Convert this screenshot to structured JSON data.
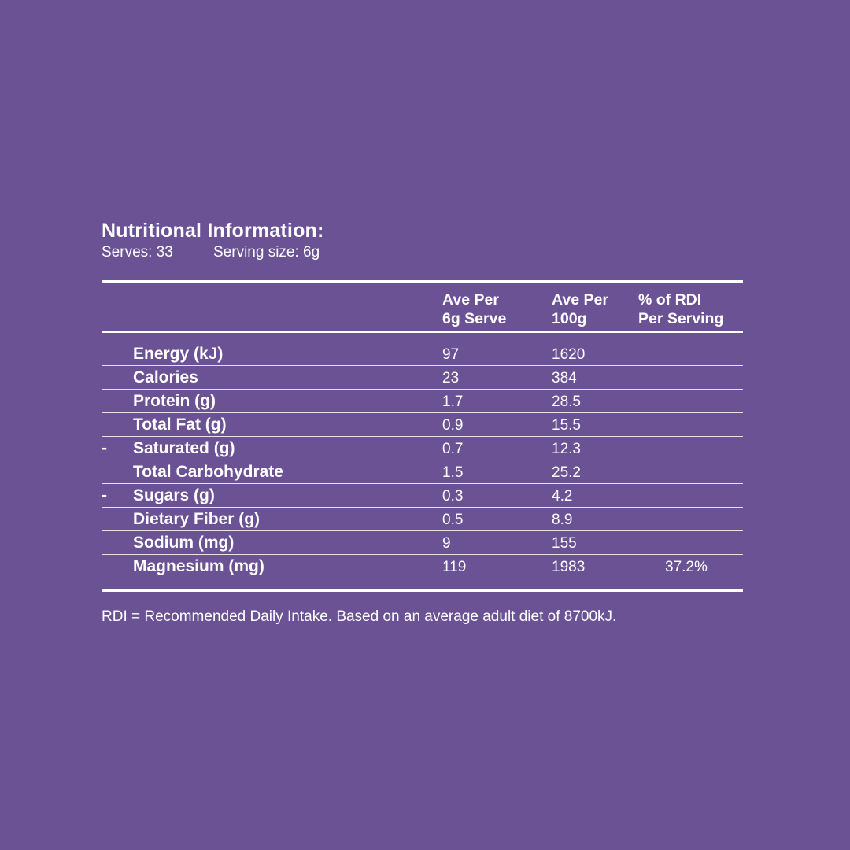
{
  "title": "Nutritional Information:",
  "serves": "Serves: 33",
  "serving_size": "Serving size: 6g",
  "headers": {
    "col1": [
      "Ave Per",
      "6g Serve"
    ],
    "col2": [
      "Ave Per",
      "100g"
    ],
    "col3": [
      "% of RDI",
      "Per Serving"
    ]
  },
  "rows": [
    {
      "dash": "",
      "name": "Energy (kJ)",
      "serve": "97",
      "per100": "1620",
      "rdi": ""
    },
    {
      "dash": "",
      "name": "Calories",
      "serve": "23",
      "per100": "384",
      "rdi": ""
    },
    {
      "dash": "",
      "name": "Protein (g)",
      "serve": "1.7",
      "per100": "28.5",
      "rdi": ""
    },
    {
      "dash": "",
      "name": "Total Fat (g)",
      "serve": "0.9",
      "per100": "15.5",
      "rdi": ""
    },
    {
      "dash": "-",
      "name": "Saturated (g)",
      "serve": "0.7",
      "per100": "12.3",
      "rdi": ""
    },
    {
      "dash": "",
      "name": "Total Carbohydrate",
      "serve": "1.5",
      "per100": "25.2",
      "rdi": ""
    },
    {
      "dash": "-",
      "name": "Sugars (g)",
      "serve": "0.3",
      "per100": "4.2",
      "rdi": ""
    },
    {
      "dash": "",
      "name": "Dietary Fiber (g)",
      "serve": "0.5",
      "per100": "8.9",
      "rdi": ""
    },
    {
      "dash": "",
      "name": "Sodium (mg)",
      "serve": "9",
      "per100": "155",
      "rdi": ""
    },
    {
      "dash": "",
      "name": "Magnesium (mg)",
      "serve": "119",
      "per100": "1983",
      "rdi": "37.2%"
    }
  ],
  "footnote": "RDI = Recommended Daily Intake. Based on an average adult diet of 8700kJ.",
  "colors": {
    "background": "#6a5295",
    "text": "#ffffff"
  }
}
